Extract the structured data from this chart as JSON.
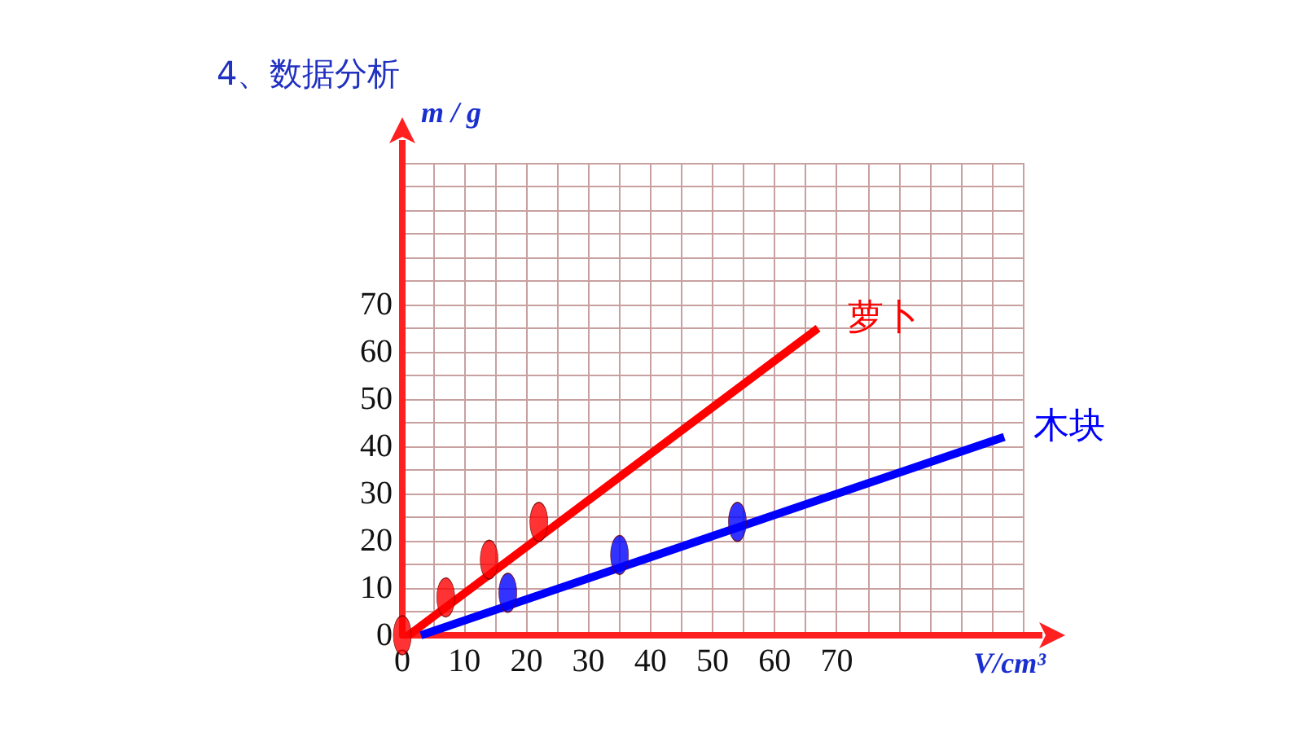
{
  "chart_data": {
    "type": "scatter",
    "title": "4、数据分析",
    "xlabel": "V/cm³",
    "ylabel": "m / g",
    "xlim": [
      0,
      100
    ],
    "ylim": [
      0,
      100
    ],
    "xticks": [
      0,
      {
        "value": 5,
        "label": null
      },
      10,
      {
        "value": 15,
        "label": null
      },
      20,
      {
        "value": 25,
        "label": null
      },
      30,
      {
        "value": 35,
        "label": null
      },
      40,
      {
        "value": 45,
        "label": null
      },
      50,
      {
        "value": 55,
        "label": null
      },
      60,
      {
        "value": 65,
        "label": null
      },
      70,
      {
        "value": 75,
        "label": null
      },
      {
        "value": 80,
        "label": null
      },
      {
        "value": 85,
        "label": null
      },
      {
        "value": 90,
        "label": null
      },
      {
        "value": 95,
        "label": null
      },
      {
        "value": 100,
        "label": null
      }
    ],
    "yticks": [
      0,
      {
        "value": 5,
        "label": null
      },
      10,
      {
        "value": 15,
        "label": null
      },
      20,
      {
        "value": 25,
        "label": null
      },
      30,
      {
        "value": 35,
        "label": null
      },
      40,
      {
        "value": 45,
        "label": null
      },
      50,
      {
        "value": 55,
        "label": null
      },
      60,
      {
        "value": 65,
        "label": null
      },
      70,
      {
        "value": 75,
        "label": null
      },
      {
        "value": 80,
        "label": null
      },
      {
        "value": 85,
        "label": null
      },
      {
        "value": 90,
        "label": null
      },
      {
        "value": 95,
        "label": null
      },
      {
        "value": 100,
        "label": null
      }
    ],
    "grid": true,
    "legend": false,
    "series": [
      {
        "color": "#ff0000",
        "marker": "circle",
        "x": [
          0,
          7,
          14,
          22
        ],
        "values": [
          0,
          8,
          16,
          24
        ]
      },
      {
        "type": "line",
        "name": "萝卜",
        "color": "#ff0000",
        "x": [
          1,
          67
        ],
        "values": [
          0,
          65
        ]
      },
      {
        "color": "#0000ff",
        "marker": "circle",
        "x": [
          17,
          35,
          54
        ],
        "values": [
          9,
          17,
          24
        ]
      },
      {
        "type": "line",
        "name": "木块",
        "color": "#0000ff",
        "x": [
          3,
          97
        ],
        "values": [
          0,
          42
        ]
      }
    ]
  }
}
